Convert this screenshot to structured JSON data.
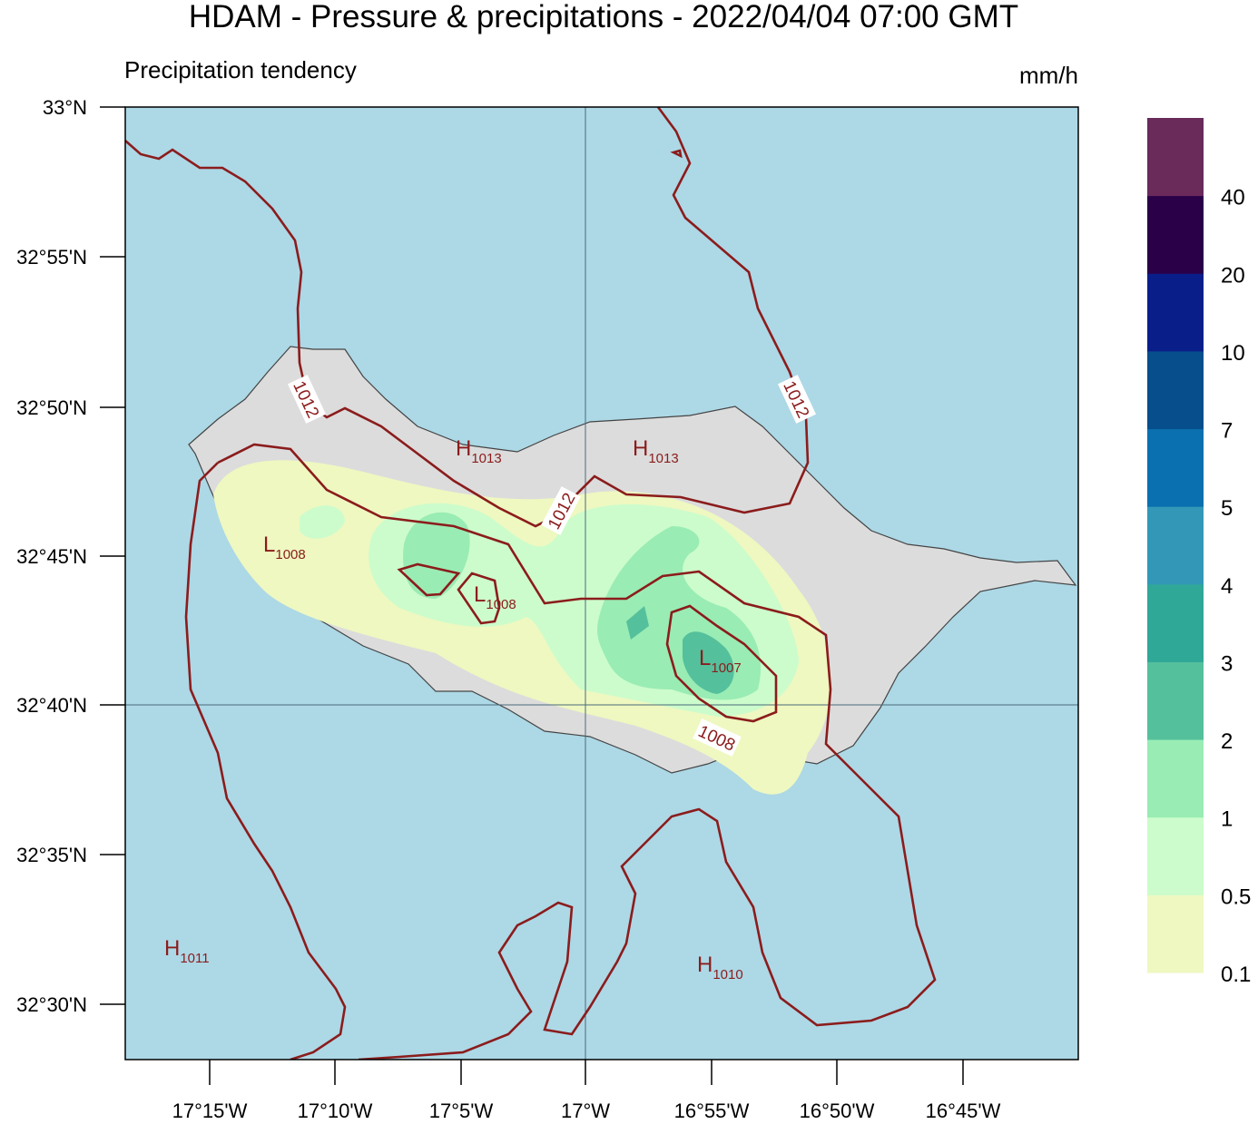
{
  "title": "HDAM - Pressure & precipitations  -  2022/04/04  07:00 GMT",
  "subtitle": "Precipitation tendency",
  "unit": "mm/h",
  "lat_ticks": [
    "33°N",
    "32°55'N",
    "32°50'N",
    "32°45'N",
    "32°40'N",
    "32°35'N",
    "32°30'N"
  ],
  "lon_ticks": [
    "17°15'W",
    "17°10'W",
    "17°5'W",
    "17°W",
    "16°55'W",
    "16°50'W",
    "16°45'W"
  ],
  "legend": {
    "labels": [
      "0.1",
      "0.5",
      "1",
      "2",
      "3",
      "4",
      "5",
      "7",
      "10",
      "20",
      "40"
    ],
    "colors": [
      "#eef8c0",
      "#ccfccc",
      "#99ecb4",
      "#55c09c",
      "#30a898",
      "#3398b8",
      "#0a70b0",
      "#064e8c",
      "#0a1e8a",
      "#2a0048",
      "#6a2a5a"
    ]
  },
  "pressure_centers": [
    {
      "letter": "H",
      "value": "1013"
    },
    {
      "letter": "H",
      "value": "1013"
    },
    {
      "letter": "L",
      "value": "1008"
    },
    {
      "letter": "L",
      "value": "1008"
    },
    {
      "letter": "L",
      "value": "1007"
    },
    {
      "letter": "H",
      "value": "1011"
    },
    {
      "letter": "H",
      "value": "1010"
    }
  ],
  "isobar_labels": [
    "1012",
    "1012",
    "1012",
    "1008"
  ]
}
